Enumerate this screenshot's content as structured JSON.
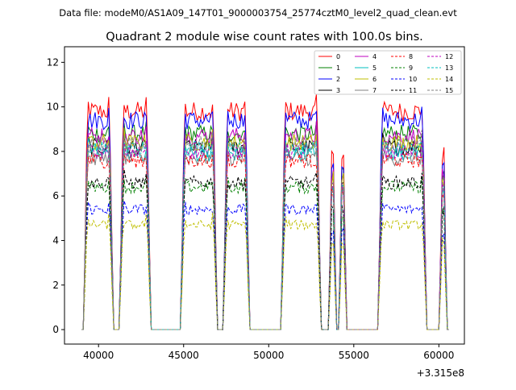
{
  "suptitle": "Data file: modeM0/AS1A09_147T01_9000003754_25774cztM0_level2_quad_clean.evt",
  "chart_data": {
    "type": "line",
    "title": "Quadrant 2 module wise count rates with 100.0s bins.",
    "xlabel": "",
    "ylabel": "",
    "x_offset_text": "+3.315e8",
    "xlim": [
      38000,
      61500
    ],
    "ylim": [
      -0.65,
      12.7
    ],
    "xticks": [
      40000,
      45000,
      50000,
      55000,
      60000
    ],
    "xtick_labels": [
      "40000",
      "45000",
      "50000",
      "55000",
      "60000"
    ],
    "yticks": [
      0,
      2,
      4,
      6,
      8,
      10,
      12
    ],
    "ytick_labels": [
      "0",
      "2",
      "4",
      "6",
      "8",
      "10",
      "12"
    ],
    "segments": [
      {
        "start": 39200,
        "end": 40800
      },
      {
        "start": 41300,
        "end": 43000
      },
      {
        "start": 44900,
        "end": 46900
      },
      {
        "start": 47400,
        "end": 48800
      },
      {
        "start": 50800,
        "end": 53000
      },
      {
        "start": 53600,
        "end": 53900
      },
      {
        "start": 54200,
        "end": 54500
      },
      {
        "start": 56500,
        "end": 59200
      },
      {
        "start": 60100,
        "end": 60400
      }
    ],
    "series": [
      {
        "name": "0",
        "level": 9.8,
        "color": "#ff0000",
        "dashed": false
      },
      {
        "name": "1",
        "level": 8.8,
        "color": "#008000",
        "dashed": false
      },
      {
        "name": "2",
        "level": 9.4,
        "color": "#0000ff",
        "dashed": false
      },
      {
        "name": "3",
        "level": 8.2,
        "color": "#000000",
        "dashed": false
      },
      {
        "name": "4",
        "level": 8.7,
        "color": "#bf00bf",
        "dashed": false
      },
      {
        "name": "5",
        "level": 7.9,
        "color": "#00bfbf",
        "dashed": false
      },
      {
        "name": "6",
        "level": 8.4,
        "color": "#bfbf00",
        "dashed": false
      },
      {
        "name": "7",
        "level": 7.7,
        "color": "#808080",
        "dashed": false
      },
      {
        "name": "8",
        "level": 7.6,
        "color": "#ff0000",
        "dashed": true
      },
      {
        "name": "9",
        "level": 6.4,
        "color": "#008000",
        "dashed": true
      },
      {
        "name": "10",
        "level": 5.4,
        "color": "#0000ff",
        "dashed": true
      },
      {
        "name": "11",
        "level": 6.6,
        "color": "#000000",
        "dashed": true
      },
      {
        "name": "12",
        "level": 8.0,
        "color": "#bf00bf",
        "dashed": true
      },
      {
        "name": "13",
        "level": 8.1,
        "color": "#00bfbf",
        "dashed": true
      },
      {
        "name": "14",
        "level": 4.7,
        "color": "#bfbf00",
        "dashed": true
      },
      {
        "name": "15",
        "level": 8.3,
        "color": "#808080",
        "dashed": true
      }
    ]
  }
}
